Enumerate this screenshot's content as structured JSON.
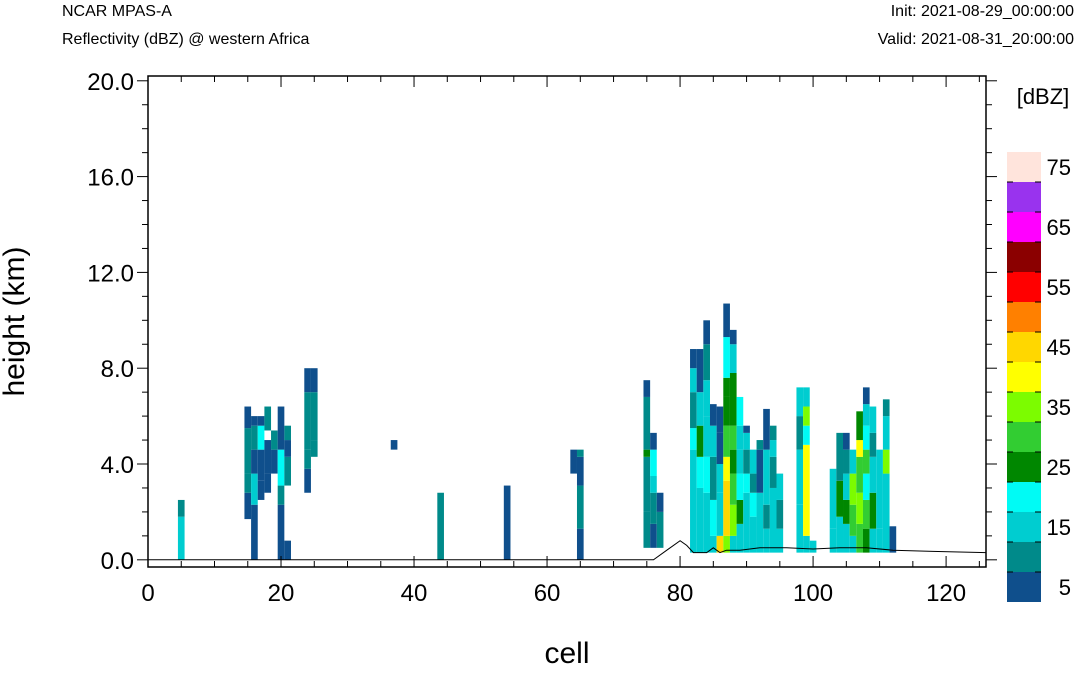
{
  "header": {
    "model": "NCAR MPAS-A",
    "field": "Reflectivity (dBZ) @ western Africa",
    "init": "Init: 2021-08-29_00:00:00",
    "valid": "Valid: 2021-08-31_20:00:00"
  },
  "chart_data": {
    "type": "heatmap",
    "xlabel": "cell",
    "ylabel": "height (km)",
    "xlim": [
      0,
      126
    ],
    "ylim": [
      -0.3,
      20.2
    ],
    "x_ticks": [
      0,
      20,
      40,
      60,
      80,
      100,
      120
    ],
    "x_tick_labels": [
      "0",
      "20",
      "40",
      "60",
      "80",
      "100",
      "120"
    ],
    "y_ticks": [
      0,
      4,
      8,
      12,
      16,
      20
    ],
    "y_tick_labels": [
      "0.0",
      "4.0",
      "8.0",
      "12.0",
      "16.0",
      "20.0"
    ],
    "grid": false,
    "colorbar": {
      "title": "[dBZ]",
      "levels": [
        5,
        10,
        15,
        20,
        25,
        30,
        35,
        40,
        45,
        50,
        55,
        60,
        65,
        70,
        75
      ],
      "labels": [
        "5",
        "15",
        "25",
        "35",
        "45",
        "55",
        "65",
        "75"
      ],
      "colors": [
        "#0f4f8c",
        "#008a8a",
        "#00cdd0",
        "#00fbf5",
        "#008700",
        "#32cd32",
        "#7cfc00",
        "#ffff00",
        "#ffd700",
        "#ff8000",
        "#ff0000",
        "#8b0000",
        "#ff00ff",
        "#9933ee",
        "#ffe4dc"
      ]
    },
    "columns": [
      {
        "x": 5,
        "bands": [
          [
            0,
            1.8,
            15
          ],
          [
            1.8,
            2.5,
            10
          ]
        ]
      },
      {
        "x": 15,
        "bands": [
          [
            1.7,
            2.8,
            5
          ],
          [
            2.8,
            3.6,
            10
          ],
          [
            3.6,
            5.5,
            10
          ],
          [
            5.5,
            6.4,
            5
          ]
        ]
      },
      {
        "x": 16,
        "bands": [
          [
            0,
            2.3,
            5
          ],
          [
            2.3,
            3.6,
            15
          ],
          [
            3.6,
            4.6,
            5
          ],
          [
            4.6,
            5.6,
            10
          ],
          [
            5.6,
            6.0,
            5
          ]
        ]
      },
      {
        "x": 17,
        "bands": [
          [
            2.5,
            3.3,
            5
          ],
          [
            3.3,
            4.6,
            5
          ],
          [
            4.6,
            5.6,
            20
          ],
          [
            5.6,
            6.0,
            5
          ]
        ]
      },
      {
        "x": 18,
        "bands": [
          [
            2.8,
            3.6,
            5
          ],
          [
            3.6,
            5.0,
            5
          ],
          [
            5.4,
            6.4,
            10
          ]
        ]
      },
      {
        "x": 19,
        "bands": [
          [
            3.6,
            4.6,
            5
          ],
          [
            4.6,
            5.4,
            10
          ]
        ]
      },
      {
        "x": 20,
        "bands": [
          [
            0,
            2.3,
            5
          ],
          [
            2.3,
            3.1,
            10
          ],
          [
            3.1,
            4.6,
            20
          ],
          [
            4.6,
            6.4,
            5
          ]
        ]
      },
      {
        "x": 21,
        "bands": [
          [
            0,
            0.8,
            5
          ],
          [
            3.1,
            4.3,
            10
          ],
          [
            4.3,
            5.0,
            5
          ],
          [
            5.0,
            5.6,
            10
          ]
        ]
      },
      {
        "x": 24,
        "bands": [
          [
            2.8,
            3.8,
            5
          ],
          [
            3.8,
            4.6,
            10
          ],
          [
            4.6,
            7.0,
            10
          ],
          [
            7.0,
            8.0,
            5
          ]
        ]
      },
      {
        "x": 25,
        "bands": [
          [
            4.3,
            5.0,
            10
          ],
          [
            5.0,
            7.0,
            10
          ],
          [
            7.0,
            8.0,
            5
          ]
        ]
      },
      {
        "x": 37,
        "bands": [
          [
            4.6,
            5.0,
            5
          ]
        ]
      },
      {
        "x": 44,
        "bands": [
          [
            0,
            2.8,
            10
          ]
        ]
      },
      {
        "x": 54,
        "bands": [
          [
            0,
            3.1,
            5
          ]
        ]
      },
      {
        "x": 64,
        "bands": [
          [
            3.6,
            4.6,
            5
          ]
        ]
      },
      {
        "x": 65,
        "bands": [
          [
            0,
            1.3,
            5
          ],
          [
            1.3,
            3.1,
            10
          ],
          [
            3.1,
            4.3,
            5
          ],
          [
            4.3,
            4.6,
            10
          ]
        ]
      },
      {
        "x": 75,
        "bands": [
          [
            0.5,
            2.0,
            10
          ],
          [
            2.0,
            4.3,
            10
          ],
          [
            4.3,
            4.6,
            25
          ],
          [
            4.6,
            6.8,
            10
          ],
          [
            6.8,
            7.5,
            5
          ]
        ]
      },
      {
        "x": 76,
        "bands": [
          [
            0.5,
            1.5,
            5
          ],
          [
            1.5,
            2.8,
            10
          ],
          [
            2.8,
            3.5,
            15
          ],
          [
            3.5,
            4.6,
            20
          ],
          [
            4.6,
            5.3,
            5
          ]
        ]
      },
      {
        "x": 77,
        "bands": [
          [
            0.5,
            2.0,
            10
          ],
          [
            2.0,
            2.8,
            5
          ]
        ]
      },
      {
        "x": 82,
        "bands": [
          [
            0.3,
            4.6,
            15
          ],
          [
            4.6,
            5.5,
            20
          ],
          [
            5.5,
            7.0,
            10
          ],
          [
            7.0,
            8.0,
            15
          ],
          [
            8.0,
            8.8,
            5
          ]
        ]
      },
      {
        "x": 83,
        "bands": [
          [
            0.3,
            3.0,
            15
          ],
          [
            3.0,
            4.3,
            20
          ],
          [
            4.3,
            5.6,
            25
          ],
          [
            5.6,
            7.0,
            15
          ],
          [
            7.0,
            8.8,
            5
          ]
        ]
      },
      {
        "x": 84,
        "bands": [
          [
            0.3,
            2.8,
            15
          ],
          [
            2.8,
            4.3,
            20
          ],
          [
            4.3,
            6.0,
            15
          ],
          [
            6.0,
            7.5,
            15
          ],
          [
            7.5,
            9.0,
            10
          ],
          [
            9.0,
            10.0,
            5
          ]
        ]
      },
      {
        "x": 85,
        "bands": [
          [
            0.3,
            1.0,
            15
          ],
          [
            1.0,
            2.5,
            20
          ],
          [
            2.5,
            4.3,
            10
          ],
          [
            4.3,
            5.6,
            15
          ],
          [
            5.6,
            6.5,
            5
          ]
        ]
      },
      {
        "x": 86,
        "bands": [
          [
            0.3,
            1.0,
            45
          ],
          [
            1.0,
            2.8,
            15
          ],
          [
            2.8,
            4.0,
            15
          ],
          [
            4.0,
            5.3,
            5
          ],
          [
            5.3,
            6.4,
            5
          ]
        ]
      },
      {
        "x": 87,
        "bands": [
          [
            0.3,
            1.0,
            35
          ],
          [
            1.0,
            3.3,
            45
          ],
          [
            3.3,
            4.3,
            40
          ],
          [
            4.3,
            5.6,
            30
          ],
          [
            5.6,
            6.8,
            25
          ],
          [
            6.8,
            7.6,
            25
          ],
          [
            7.6,
            9.3,
            20
          ],
          [
            9.3,
            10.7,
            5
          ]
        ]
      },
      {
        "x": 88,
        "bands": [
          [
            0.3,
            1.0,
            15
          ],
          [
            1.0,
            2.3,
            35
          ],
          [
            2.3,
            3.6,
            30
          ],
          [
            3.6,
            4.6,
            25
          ],
          [
            4.6,
            5.6,
            30
          ],
          [
            5.6,
            7.8,
            25
          ],
          [
            7.8,
            9.0,
            15
          ],
          [
            9.0,
            9.6,
            5
          ]
        ]
      },
      {
        "x": 89,
        "bands": [
          [
            0.3,
            1.5,
            15
          ],
          [
            1.5,
            2.5,
            25
          ],
          [
            2.5,
            3.6,
            20
          ],
          [
            3.6,
            4.6,
            15
          ],
          [
            4.6,
            5.6,
            15
          ],
          [
            5.6,
            6.8,
            20
          ]
        ]
      },
      {
        "x": 90,
        "bands": [
          [
            0.3,
            2.8,
            15
          ],
          [
            2.8,
            3.6,
            20
          ],
          [
            3.6,
            4.6,
            10
          ],
          [
            4.6,
            5.3,
            15
          ],
          [
            5.3,
            5.6,
            5
          ]
        ]
      },
      {
        "x": 91,
        "bands": [
          [
            0.3,
            1.8,
            15
          ],
          [
            1.8,
            2.8,
            20
          ],
          [
            2.8,
            3.6,
            10
          ],
          [
            3.6,
            4.6,
            15
          ]
        ]
      },
      {
        "x": 92,
        "bands": [
          [
            0.3,
            2.8,
            15
          ],
          [
            2.8,
            4.6,
            5
          ],
          [
            4.6,
            5.0,
            10
          ]
        ]
      },
      {
        "x": 93,
        "bands": [
          [
            0.3,
            1.3,
            15
          ],
          [
            1.3,
            2.3,
            10
          ],
          [
            2.3,
            4.6,
            15
          ],
          [
            4.6,
            6.3,
            5
          ]
        ]
      },
      {
        "x": 94,
        "bands": [
          [
            0.3,
            3.0,
            15
          ],
          [
            3.0,
            4.3,
            10
          ],
          [
            4.3,
            5.0,
            15
          ],
          [
            5.0,
            5.6,
            10
          ]
        ]
      },
      {
        "x": 95,
        "bands": [
          [
            0.3,
            1.3,
            15
          ],
          [
            1.3,
            2.5,
            10
          ],
          [
            2.5,
            3.6,
            15
          ]
        ]
      },
      {
        "x": 98,
        "bands": [
          [
            0.3,
            2.3,
            15
          ],
          [
            2.3,
            4.6,
            15
          ],
          [
            4.6,
            6.0,
            10
          ],
          [
            6.0,
            7.2,
            15
          ]
        ]
      },
      {
        "x": 99,
        "bands": [
          [
            0.3,
            1.0,
            15
          ],
          [
            1.0,
            4.8,
            40
          ],
          [
            4.8,
            5.6,
            20
          ],
          [
            5.6,
            6.4,
            35
          ],
          [
            6.4,
            7.2,
            15
          ]
        ]
      },
      {
        "x": 100,
        "bands": [
          [
            0.3,
            0.8,
            15
          ]
        ]
      },
      {
        "x": 103,
        "bands": [
          [
            0.3,
            1.3,
            15
          ],
          [
            1.3,
            3.8,
            15
          ]
        ]
      },
      {
        "x": 104,
        "bands": [
          [
            0.3,
            1.8,
            15
          ],
          [
            1.8,
            3.3,
            25
          ],
          [
            3.3,
            5.3,
            10
          ]
        ]
      },
      {
        "x": 105,
        "bands": [
          [
            0.3,
            1.5,
            15
          ],
          [
            1.5,
            2.5,
            25
          ],
          [
            2.5,
            3.6,
            15
          ],
          [
            3.6,
            4.6,
            10
          ],
          [
            4.6,
            5.3,
            5
          ]
        ]
      },
      {
        "x": 106,
        "bands": [
          [
            0.3,
            1.0,
            15
          ],
          [
            1.0,
            2.3,
            30
          ],
          [
            2.3,
            3.6,
            35
          ],
          [
            3.6,
            4.6,
            15
          ]
        ]
      },
      {
        "x": 107,
        "bands": [
          [
            0.3,
            1.5,
            30
          ],
          [
            1.5,
            2.8,
            35
          ],
          [
            2.8,
            4.3,
            30
          ],
          [
            4.3,
            5.0,
            40
          ],
          [
            5.0,
            6.2,
            25
          ]
        ]
      },
      {
        "x": 108,
        "bands": [
          [
            0.3,
            1.3,
            25
          ],
          [
            1.3,
            2.5,
            30
          ],
          [
            2.5,
            3.6,
            20
          ],
          [
            3.6,
            4.6,
            30
          ],
          [
            4.6,
            5.6,
            20
          ],
          [
            5.6,
            6.5,
            15
          ],
          [
            6.5,
            7.2,
            5
          ]
        ]
      },
      {
        "x": 109,
        "bands": [
          [
            0.3,
            1.3,
            15
          ],
          [
            1.3,
            2.8,
            25
          ],
          [
            2.8,
            4.3,
            15
          ],
          [
            4.3,
            5.3,
            10
          ],
          [
            5.3,
            6.4,
            15
          ]
        ]
      },
      {
        "x": 110,
        "bands": [
          [
            0.3,
            1.3,
            15
          ],
          [
            1.3,
            4.6,
            15
          ]
        ]
      },
      {
        "x": 111,
        "bands": [
          [
            0.3,
            3.6,
            15
          ],
          [
            3.6,
            4.6,
            35
          ],
          [
            4.6,
            6.0,
            15
          ],
          [
            6.0,
            6.7,
            10
          ]
        ]
      },
      {
        "x": 112,
        "bands": [
          [
            0.3,
            1.4,
            5
          ]
        ]
      }
    ],
    "terrain": [
      [
        0,
        0
      ],
      [
        76,
        0
      ],
      [
        78,
        0.4
      ],
      [
        80,
        0.8
      ],
      [
        81,
        0.6
      ],
      [
        82,
        0.3
      ],
      [
        84,
        0.3
      ],
      [
        85,
        0.5
      ],
      [
        86,
        0.3
      ],
      [
        87,
        0.4
      ],
      [
        89,
        0.4
      ],
      [
        92,
        0.5
      ],
      [
        96,
        0.5
      ],
      [
        100,
        0.45
      ],
      [
        104,
        0.5
      ],
      [
        108,
        0.5
      ],
      [
        112,
        0.4
      ],
      [
        118,
        0.35
      ],
      [
        126,
        0.3
      ]
    ]
  }
}
